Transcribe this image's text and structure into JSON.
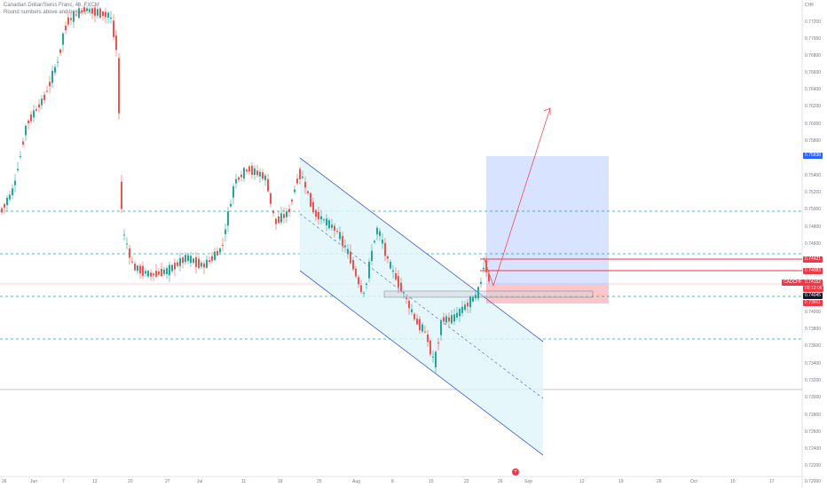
{
  "header": {
    "title": "Canadian Dollar/Swiss Franc, 4h, FXCM",
    "subtitle": "Round numbers above and below (0)"
  },
  "price_axis": {
    "currency": "CHF",
    "ticks": [
      "0.77200",
      "0.77000",
      "0.76800",
      "0.76600",
      "0.76400",
      "0.76200",
      "0.76000",
      "0.75800",
      "0.75400",
      "0.75200",
      "0.75000",
      "0.74800",
      "0.74600",
      "0.74000",
      "0.73800",
      "0.73600",
      "0.73400",
      "0.73200",
      "0.73000",
      "0.72800",
      "0.72600",
      "0.72400",
      "0.72200",
      "0.72000"
    ]
  },
  "time_axis": {
    "ticks": [
      "26",
      "Jun",
      "7",
      "13",
      "20",
      "27",
      "Jul",
      "11",
      "18",
      "25",
      "Aug",
      "8",
      "15",
      "22",
      "26",
      "Sep",
      "12",
      "19",
      "26",
      "Oct",
      "10",
      "17"
    ]
  },
  "tags": {
    "target": "0.75838",
    "level_1": "0.74421",
    "level_2": "0.74083",
    "symbol": "CADCHF",
    "last_price": "0.74152",
    "countdown": "02:12:05",
    "level_3": "0.74045",
    "stop": "0.73911"
  },
  "colors": {
    "up": "#26a69a",
    "down": "#ef5350",
    "channel": "#3d5bd6",
    "long_profit": "#2962ff",
    "long_loss": "#f23645"
  },
  "icons": {
    "alert": "alert-icon"
  }
}
